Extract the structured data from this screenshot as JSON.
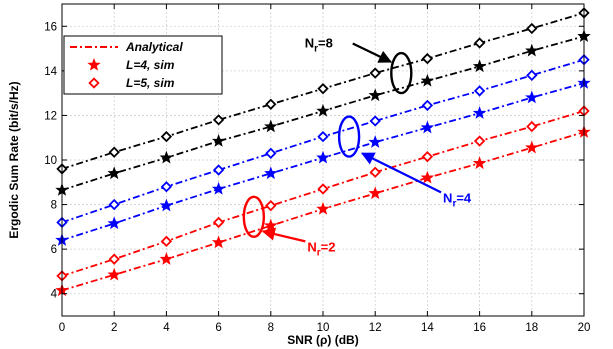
{
  "chart_data": {
    "type": "line",
    "xlabel": "SNR (ρ) (dB)",
    "ylabel": "Ergodic Sum Rate (bit/s/Hz)",
    "xlim": [
      0,
      20
    ],
    "ylim": [
      3,
      17
    ],
    "x_ticks": [
      0,
      2,
      4,
      6,
      8,
      10,
      12,
      14,
      16,
      18,
      20
    ],
    "y_ticks": [
      4,
      6,
      8,
      10,
      12,
      14,
      16
    ],
    "grid": true,
    "legend_position": "top-left",
    "legend": [
      {
        "label": "Analytical",
        "style": "dash-dot line"
      },
      {
        "label": "L=4, sim",
        "marker": "star"
      },
      {
        "label": "L=5, sim",
        "marker": "diamond"
      }
    ],
    "x": [
      0,
      2,
      4,
      6,
      8,
      10,
      12,
      14,
      16,
      18,
      20
    ],
    "series": [
      {
        "group": "Nr=8",
        "L": 5,
        "color": "#000000",
        "marker": "diamond",
        "values": [
          9.6,
          10.35,
          11.05,
          11.8,
          12.5,
          13.2,
          13.9,
          14.55,
          15.25,
          15.9,
          16.6
        ]
      },
      {
        "group": "Nr=8",
        "L": 4,
        "color": "#000000",
        "marker": "star",
        "values": [
          8.65,
          9.4,
          10.1,
          10.85,
          11.5,
          12.2,
          12.9,
          13.55,
          14.2,
          14.9,
          15.55
        ]
      },
      {
        "group": "Nr=4",
        "L": 5,
        "color": "#0000ff",
        "marker": "diamond",
        "values": [
          7.2,
          8.0,
          8.8,
          9.55,
          10.3,
          11.05,
          11.75,
          12.45,
          13.1,
          13.8,
          14.5
        ]
      },
      {
        "group": "Nr=4",
        "L": 4,
        "color": "#0000ff",
        "marker": "star",
        "values": [
          6.4,
          7.15,
          7.95,
          8.7,
          9.4,
          10.1,
          10.8,
          11.45,
          12.1,
          12.8,
          13.45
        ]
      },
      {
        "group": "Nr=2",
        "L": 5,
        "color": "#ff0000",
        "marker": "diamond",
        "values": [
          4.8,
          5.55,
          6.35,
          7.2,
          7.95,
          8.7,
          9.45,
          10.15,
          10.85,
          11.5,
          12.2
        ]
      },
      {
        "group": "Nr=2",
        "L": 4,
        "color": "#ff0000",
        "marker": "star",
        "values": [
          4.15,
          4.85,
          5.55,
          6.3,
          7.05,
          7.8,
          8.5,
          9.2,
          9.85,
          10.55,
          11.25
        ]
      }
    ],
    "annotations": [
      {
        "base": "N",
        "sub": "r",
        "rest": "=8",
        "color": "#000000",
        "text_at": [
          9.3,
          15.05
        ],
        "arrow_to": [
          12.6,
          14.4
        ],
        "ellipse_at": [
          13.0,
          13.9
        ]
      },
      {
        "base": "N",
        "sub": "r",
        "rest": "=4",
        "color": "#0000ff",
        "text_at": [
          14.6,
          8.1
        ],
        "arrow_to": [
          11.5,
          10.3
        ],
        "ellipse_at": [
          11.0,
          11.05
        ]
      },
      {
        "base": "N",
        "sub": "r",
        "rest": "=2",
        "color": "#ff0000",
        "text_at": [
          9.4,
          5.9
        ],
        "arrow_to": [
          7.7,
          6.8
        ],
        "ellipse_at": [
          7.35,
          7.45
        ]
      }
    ]
  }
}
